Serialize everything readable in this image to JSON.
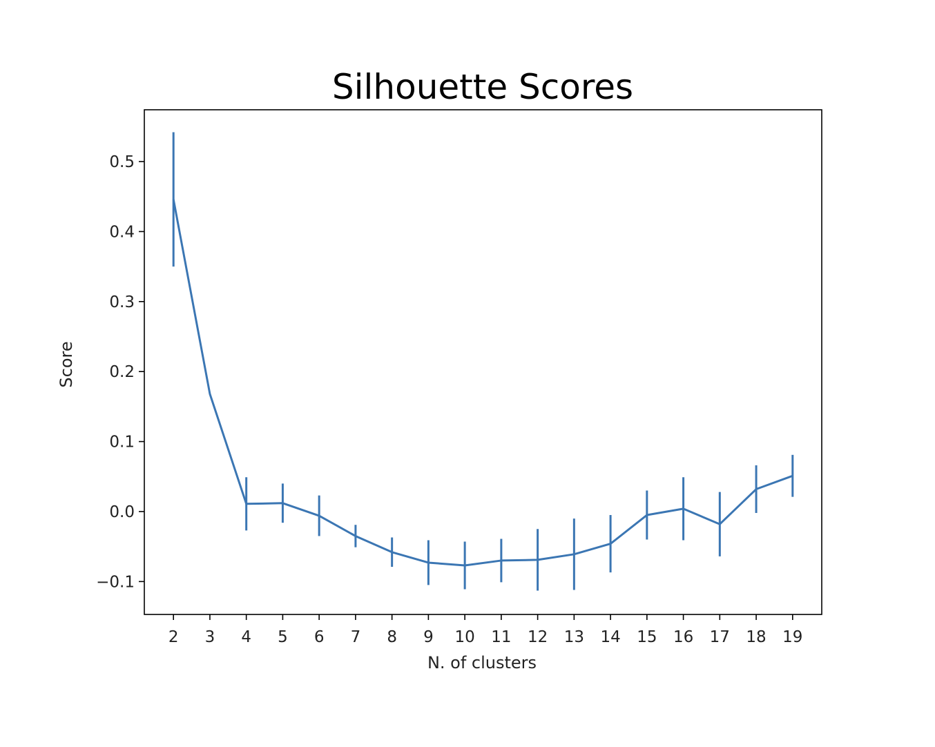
{
  "chart_data": {
    "type": "line",
    "title": "Silhouette Scores",
    "xlabel": "N. of clusters",
    "ylabel": "Score",
    "x": [
      2,
      3,
      4,
      5,
      6,
      7,
      8,
      9,
      10,
      11,
      12,
      13,
      14,
      15,
      16,
      17,
      18,
      19
    ],
    "x_tick_labels": [
      "2",
      "3",
      "4",
      "5",
      "6",
      "7",
      "8",
      "9",
      "10",
      "11",
      "12",
      "13",
      "14",
      "15",
      "16",
      "17",
      "18",
      "19"
    ],
    "y_tick_values": [
      -0.1,
      0.0,
      0.1,
      0.2,
      0.3,
      0.4,
      0.5
    ],
    "y_tick_labels": [
      "−0.1",
      "0.0",
      "0.1",
      "0.2",
      "0.3",
      "0.4",
      "0.5"
    ],
    "xlim": [
      1.2,
      19.8
    ],
    "ylim": [
      -0.147,
      0.574
    ],
    "grid": false,
    "color": "#3b76b3",
    "series": [
      {
        "values": [
          0.446,
          0.168,
          0.011,
          0.012,
          -0.006,
          -0.035,
          -0.058,
          -0.073,
          -0.077,
          -0.07,
          -0.069,
          -0.061,
          -0.046,
          -0.005,
          0.004,
          -0.018,
          0.032,
          0.051
        ],
        "error": [
          0.096,
          0.0,
          0.038,
          0.028,
          0.029,
          0.016,
          0.021,
          0.032,
          0.034,
          0.031,
          0.044,
          0.051,
          0.041,
          0.035,
          0.045,
          0.046,
          0.034,
          0.03
        ]
      }
    ]
  }
}
